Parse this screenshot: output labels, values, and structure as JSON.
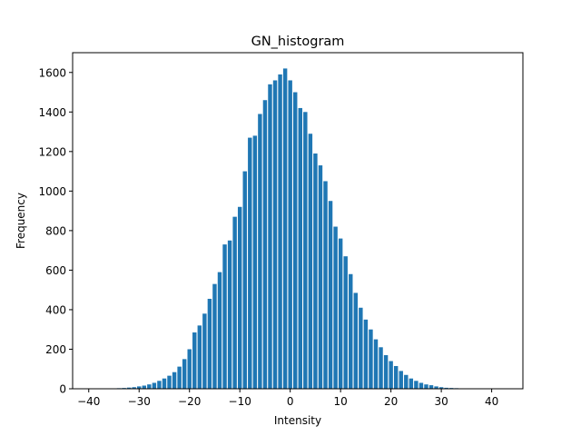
{
  "chart_data": {
    "type": "bar",
    "title": "GN_histogram",
    "xlabel": "Intensity",
    "ylabel": "Frequency",
    "xlim": [
      -43.2,
      46.2
    ],
    "ylim": [
      0,
      1700
    ],
    "xticks": [
      -40,
      -30,
      -20,
      -10,
      0,
      10,
      20,
      30,
      40
    ],
    "yticks": [
      0,
      200,
      400,
      600,
      800,
      1000,
      1200,
      1400,
      1600
    ],
    "grid": false,
    "bar_color": "#1f77b4",
    "bin_width": 1,
    "bar_width": 0.8,
    "x": [
      -35,
      -34,
      -33,
      -32,
      -31,
      -30,
      -29,
      -28,
      -27,
      -26,
      -25,
      -24,
      -23,
      -22,
      -21,
      -20,
      -19,
      -18,
      -17,
      -16,
      -15,
      -14,
      -13,
      -12,
      -11,
      -10,
      -9,
      -8,
      -7,
      -6,
      -5,
      -4,
      -3,
      -2,
      -1,
      0,
      1,
      2,
      3,
      4,
      5,
      6,
      7,
      8,
      9,
      10,
      11,
      12,
      13,
      14,
      15,
      16,
      17,
      18,
      19,
      20,
      21,
      22,
      23,
      24,
      25,
      26,
      27,
      28,
      29,
      30,
      31,
      32,
      33,
      34,
      35
    ],
    "values": [
      2,
      3,
      4,
      6,
      8,
      12,
      16,
      22,
      30,
      40,
      52,
      66,
      84,
      112,
      150,
      200,
      285,
      320,
      380,
      455,
      530,
      590,
      730,
      750,
      870,
      920,
      1100,
      1270,
      1280,
      1390,
      1460,
      1540,
      1560,
      1590,
      1620,
      1560,
      1500,
      1420,
      1400,
      1290,
      1190,
      1130,
      1050,
      950,
      820,
      760,
      670,
      580,
      485,
      410,
      350,
      300,
      250,
      210,
      170,
      140,
      115,
      90,
      70,
      52,
      40,
      30,
      22,
      18,
      12,
      8,
      5,
      4,
      3,
      2,
      1
    ]
  }
}
